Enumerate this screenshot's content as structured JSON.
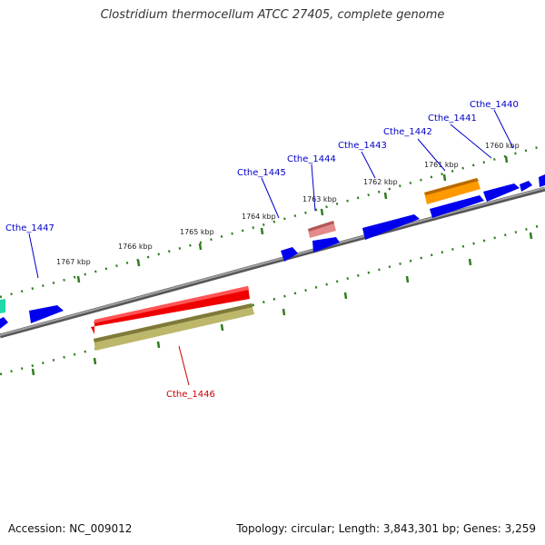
{
  "title": "Clostridium thermocellum ATCC 27405, complete genome",
  "footer": {
    "accession": "Accession: NC_009012",
    "summary": "Topology: circular; Length: 3,843,301 bp; Genes: 3,259"
  },
  "colors": {
    "backbone": "#808080",
    "tick": "#2e7d1e",
    "gene_blue": "#0000ee",
    "gene_red": "#ee0000",
    "gene_pink": "#e58a8a",
    "gene_orange": "#ff9900",
    "gene_olive": "#bdb76b",
    "gene_teal": "#1fd9a8",
    "label_blue": "#0000cc",
    "label_red": "#cc0000"
  },
  "scale_labels": [
    "1760 kbp",
    "1761 kbp",
    "1762 kbp",
    "1763 kbp",
    "1764 kbp",
    "1765 kbp",
    "1766 kbp",
    "1767 kbp"
  ],
  "gene_labels": [
    {
      "text": "Cthe_1440",
      "color": "blue"
    },
    {
      "text": "Cthe_1441",
      "color": "blue"
    },
    {
      "text": "Cthe_1442",
      "color": "blue"
    },
    {
      "text": "Cthe_1443",
      "color": "blue"
    },
    {
      "text": "Cthe_1444",
      "color": "blue"
    },
    {
      "text": "Cthe_1445",
      "color": "blue"
    },
    {
      "text": "Cthe_1446",
      "color": "red"
    },
    {
      "text": "Cthe_1447",
      "color": "blue"
    }
  ]
}
